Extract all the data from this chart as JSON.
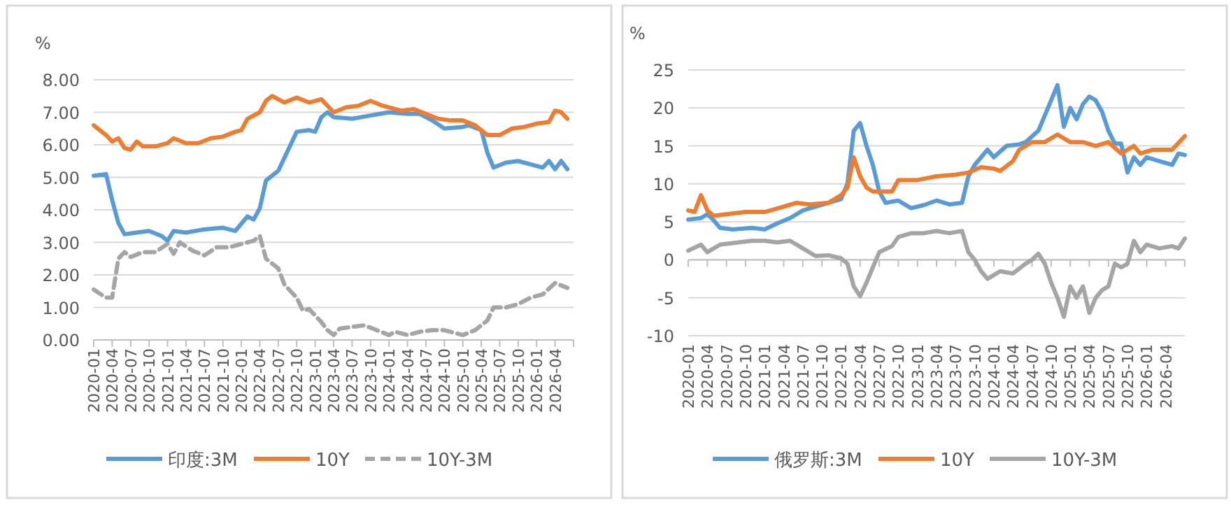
{
  "chart_data": [
    {
      "type": "line",
      "ylabel": "%",
      "ylim": [
        0,
        8
      ],
      "yticks": [
        {
          "value": 0,
          "label": "0.00"
        },
        {
          "value": 1,
          "label": "1.00"
        },
        {
          "value": 2,
          "label": "2.00"
        },
        {
          "value": 3,
          "label": "3.00"
        },
        {
          "value": 4,
          "label": "4.00"
        },
        {
          "value": 5,
          "label": "5.00"
        },
        {
          "value": 6,
          "label": "6.00"
        },
        {
          "value": 7,
          "label": "7.00"
        },
        {
          "value": 8,
          "label": "8.00"
        }
      ],
      "xlim": [
        "2020-01",
        "2026-07"
      ],
      "xticks": [
        "2020-01",
        "2020-04",
        "2020-07",
        "2020-10",
        "2021-01",
        "2021-04",
        "2021-07",
        "2021-10",
        "2022-01",
        "2022-04",
        "2022-07",
        "2022-10",
        "2023-01",
        "2023-04",
        "2023-07",
        "2023-10",
        "2024-01",
        "2024-04",
        "2024-07",
        "2024-10",
        "2025-01",
        "2025-04",
        "2025-07",
        "2025-10",
        "2026-01",
        "2026-04"
      ],
      "grid": "y",
      "legend": "bottom",
      "series": [
        {
          "name": "印度:3M",
          "color": "#5b9bd5",
          "x": [
            "2020-01",
            "2020-03",
            "2020-04",
            "2020-05",
            "2020-06",
            "2020-08",
            "2020-10",
            "2020-12",
            "2021-01",
            "2021-02",
            "2021-04",
            "2021-07",
            "2021-10",
            "2021-12",
            "2022-02",
            "2022-03",
            "2022-04",
            "2022-05",
            "2022-07",
            "2022-08",
            "2022-09",
            "2022-10",
            "2022-12",
            "2023-01",
            "2023-02",
            "2023-03",
            "2023-04",
            "2023-07",
            "2023-10",
            "2024-01",
            "2024-04",
            "2024-06",
            "2024-08",
            "2024-10",
            "2025-01",
            "2025-02",
            "2025-04",
            "2025-05",
            "2025-06",
            "2025-08",
            "2025-10",
            "2025-12",
            "2026-02",
            "2026-03",
            "2026-04",
            "2026-05",
            "2026-06"
          ],
          "values": [
            5.05,
            5.1,
            4.3,
            3.6,
            3.25,
            3.3,
            3.35,
            3.2,
            3.05,
            3.35,
            3.3,
            3.4,
            3.45,
            3.35,
            3.8,
            3.7,
            4.05,
            4.9,
            5.2,
            5.6,
            6.0,
            6.4,
            6.45,
            6.4,
            6.85,
            7.0,
            6.85,
            6.8,
            6.9,
            7.0,
            6.95,
            6.95,
            6.75,
            6.5,
            6.55,
            6.6,
            6.45,
            5.75,
            5.3,
            5.45,
            5.5,
            5.4,
            5.3,
            5.5,
            5.25,
            5.5,
            5.25
          ]
        },
        {
          "name": "10Y",
          "color": "#ed7d31",
          "x": [
            "2020-01",
            "2020-03",
            "2020-04",
            "2020-05",
            "2020-06",
            "2020-07",
            "2020-08",
            "2020-09",
            "2020-11",
            "2021-01",
            "2021-02",
            "2021-04",
            "2021-06",
            "2021-08",
            "2021-10",
            "2021-12",
            "2022-01",
            "2022-02",
            "2022-04",
            "2022-05",
            "2022-06",
            "2022-08",
            "2022-10",
            "2022-12",
            "2023-02",
            "2023-04",
            "2023-06",
            "2023-08",
            "2023-10",
            "2023-12",
            "2024-03",
            "2024-05",
            "2024-07",
            "2024-09",
            "2024-11",
            "2025-01",
            "2025-03",
            "2025-05",
            "2025-07",
            "2025-09",
            "2025-11",
            "2026-01",
            "2026-03",
            "2026-04",
            "2026-05",
            "2026-06"
          ],
          "values": [
            6.6,
            6.3,
            6.1,
            6.2,
            5.9,
            5.85,
            6.1,
            5.95,
            5.95,
            6.05,
            6.2,
            6.05,
            6.05,
            6.2,
            6.25,
            6.4,
            6.45,
            6.8,
            7.0,
            7.35,
            7.5,
            7.3,
            7.45,
            7.3,
            7.4,
            7.0,
            7.15,
            7.2,
            7.35,
            7.2,
            7.05,
            7.1,
            6.95,
            6.8,
            6.75,
            6.75,
            6.6,
            6.3,
            6.3,
            6.5,
            6.55,
            6.65,
            6.7,
            7.05,
            7.0,
            6.8
          ]
        },
        {
          "name": "10Y-3M",
          "color": "#a5a5a5",
          "line_style": "dashed",
          "x": [
            "2020-01",
            "2020-03",
            "2020-04",
            "2020-05",
            "2020-06",
            "2020-07",
            "2020-09",
            "2020-11",
            "2021-01",
            "2021-02",
            "2021-03",
            "2021-05",
            "2021-07",
            "2021-09",
            "2021-11",
            "2022-01",
            "2022-03",
            "2022-04",
            "2022-05",
            "2022-07",
            "2022-08",
            "2022-10",
            "2022-11",
            "2022-12",
            "2023-02",
            "2023-03",
            "2023-04",
            "2023-05",
            "2023-07",
            "2023-09",
            "2023-11",
            "2024-01",
            "2024-02",
            "2024-04",
            "2024-06",
            "2024-08",
            "2024-10",
            "2025-01",
            "2025-03",
            "2025-05",
            "2025-06",
            "2025-08",
            "2025-10",
            "2025-12",
            "2026-02",
            "2026-04",
            "2026-06"
          ],
          "values": [
            1.55,
            1.3,
            1.3,
            2.5,
            2.7,
            2.55,
            2.7,
            2.7,
            2.95,
            2.65,
            3.0,
            2.75,
            2.6,
            2.85,
            2.85,
            2.95,
            3.05,
            3.2,
            2.5,
            2.2,
            1.7,
            1.3,
            0.9,
            0.95,
            0.55,
            0.3,
            0.15,
            0.35,
            0.4,
            0.45,
            0.3,
            0.15,
            0.25,
            0.15,
            0.25,
            0.3,
            0.3,
            0.15,
            0.3,
            0.6,
            1.0,
            1.0,
            1.1,
            1.3,
            1.4,
            1.75,
            1.6
          ]
        }
      ]
    },
    {
      "type": "line",
      "ylabel": "%",
      "ylim": [
        -10,
        25
      ],
      "yticks": [
        -10,
        -5,
        0,
        5,
        10,
        15,
        20,
        25
      ],
      "xlim": [
        "2020-01",
        "2026-07"
      ],
      "xticks": [
        "2020-01",
        "2020-04",
        "2020-07",
        "2020-10",
        "2021-01",
        "2021-04",
        "2021-07",
        "2021-10",
        "2022-01",
        "2022-04",
        "2022-07",
        "2022-10",
        "2023-01",
        "2023-04",
        "2023-07",
        "2023-10",
        "2024-01",
        "2024-04",
        "2024-07",
        "2024-10",
        "2025-01",
        "2025-04",
        "2025-07",
        "2025-10",
        "2026-01",
        "2026-04"
      ],
      "grid": "y",
      "legend": "bottom",
      "series": [
        {
          "name": "俄罗斯:3M",
          "color": "#5b9bd5",
          "x": [
            "2020-01",
            "2020-03",
            "2020-04",
            "2020-05",
            "2020-06",
            "2020-08",
            "2020-11",
            "2021-01",
            "2021-03",
            "2021-05",
            "2021-07",
            "2021-09",
            "2021-11",
            "2022-01",
            "2022-02",
            "2022-03",
            "2022-04",
            "2022-05",
            "2022-06",
            "2022-07",
            "2022-08",
            "2022-10",
            "2022-12",
            "2023-02",
            "2023-04",
            "2023-06",
            "2023-08",
            "2023-09",
            "2023-10",
            "2023-12",
            "2024-01",
            "2024-03",
            "2024-05",
            "2024-06",
            "2024-08",
            "2024-09",
            "2024-11",
            "2024-12",
            "2025-01",
            "2025-02",
            "2025-03",
            "2025-04",
            "2025-05",
            "2025-06",
            "2025-07",
            "2025-08",
            "2025-09",
            "2025-10",
            "2025-11",
            "2025-12",
            "2026-01",
            "2026-03",
            "2026-05",
            "2026-06",
            "2026-07"
          ],
          "values": [
            5.3,
            5.5,
            6,
            5.2,
            4.2,
            4.0,
            4.2,
            4.0,
            4.8,
            5.5,
            6.5,
            7,
            7.5,
            8,
            10,
            17,
            18,
            15,
            12.5,
            9,
            7.5,
            7.8,
            6.8,
            7.2,
            7.8,
            7.3,
            7.5,
            11,
            12.5,
            14.5,
            13.5,
            15,
            15.2,
            15.5,
            17,
            19,
            23,
            17.5,
            20,
            18.5,
            20.5,
            21.5,
            21,
            19.5,
            17,
            15.3,
            15.3,
            11.5,
            13.5,
            12.5,
            13.5,
            13,
            12.5,
            14,
            13.8
          ]
        },
        {
          "name": "10Y",
          "color": "#ed7d31",
          "x": [
            "2020-01",
            "2020-02",
            "2020-03",
            "2020-04",
            "2020-05",
            "2020-07",
            "2020-10",
            "2021-01",
            "2021-04",
            "2021-06",
            "2021-08",
            "2021-11",
            "2022-01",
            "2022-02",
            "2022-03",
            "2022-04",
            "2022-05",
            "2022-06",
            "2022-09",
            "2022-10",
            "2023-01",
            "2023-04",
            "2023-07",
            "2023-09",
            "2023-11",
            "2024-01",
            "2024-02",
            "2024-04",
            "2024-05",
            "2024-07",
            "2024-09",
            "2024-11",
            "2025-01",
            "2025-03",
            "2025-05",
            "2025-07",
            "2025-09",
            "2025-10",
            "2025-11",
            "2025-12",
            "2026-02",
            "2026-05",
            "2026-07"
          ],
          "values": [
            6.5,
            6.3,
            8.5,
            6.5,
            5.8,
            6.0,
            6.3,
            6.3,
            7,
            7.5,
            7.3,
            7.5,
            8.5,
            9.5,
            13.5,
            11,
            9.5,
            9,
            9,
            10.5,
            10.5,
            11,
            11.2,
            11.5,
            12.2,
            12,
            11.7,
            13,
            14.5,
            15.5,
            15.5,
            16.5,
            15.5,
            15.5,
            15,
            15.5,
            14,
            14.5,
            15,
            14,
            14.5,
            14.5,
            16.3
          ]
        },
        {
          "name": "10Y-3M",
          "color": "#a5a5a5",
          "x": [
            "2020-01",
            "2020-03",
            "2020-04",
            "2020-06",
            "2020-08",
            "2020-11",
            "2021-01",
            "2021-03",
            "2021-05",
            "2021-07",
            "2021-09",
            "2021-11",
            "2022-01",
            "2022-02",
            "2022-03",
            "2022-04",
            "2022-05",
            "2022-06",
            "2022-07",
            "2022-09",
            "2022-10",
            "2022-12",
            "2023-02",
            "2023-04",
            "2023-06",
            "2023-08",
            "2023-09",
            "2023-10",
            "2023-11",
            "2023-12",
            "2024-02",
            "2024-04",
            "2024-06",
            "2024-07",
            "2024-08",
            "2024-09",
            "2024-10",
            "2024-11",
            "2024-12",
            "2025-01",
            "2025-02",
            "2025-03",
            "2025-04",
            "2025-05",
            "2025-06",
            "2025-07",
            "2025-08",
            "2025-09",
            "2025-10",
            "2025-11",
            "2025-12",
            "2026-01",
            "2026-03",
            "2026-05",
            "2026-06",
            "2026-07"
          ],
          "values": [
            1.2,
            2,
            1,
            2,
            2.2,
            2.5,
            2.5,
            2.3,
            2.5,
            1.5,
            0.5,
            0.6,
            0.2,
            -0.5,
            -3.5,
            -4.8,
            -3,
            -1,
            1,
            1.8,
            3,
            3.5,
            3.5,
            3.8,
            3.5,
            3.8,
            1,
            0,
            -1.5,
            -2.5,
            -1.5,
            -1.8,
            -0.5,
            0,
            0.8,
            -0.5,
            -3,
            -5,
            -7.5,
            -3.5,
            -5,
            -3.5,
            -7,
            -5,
            -4,
            -3.5,
            -0.5,
            -1,
            -0.5,
            2.5,
            1,
            2,
            1.5,
            1.8,
            1.5,
            2.8
          ]
        }
      ]
    }
  ]
}
